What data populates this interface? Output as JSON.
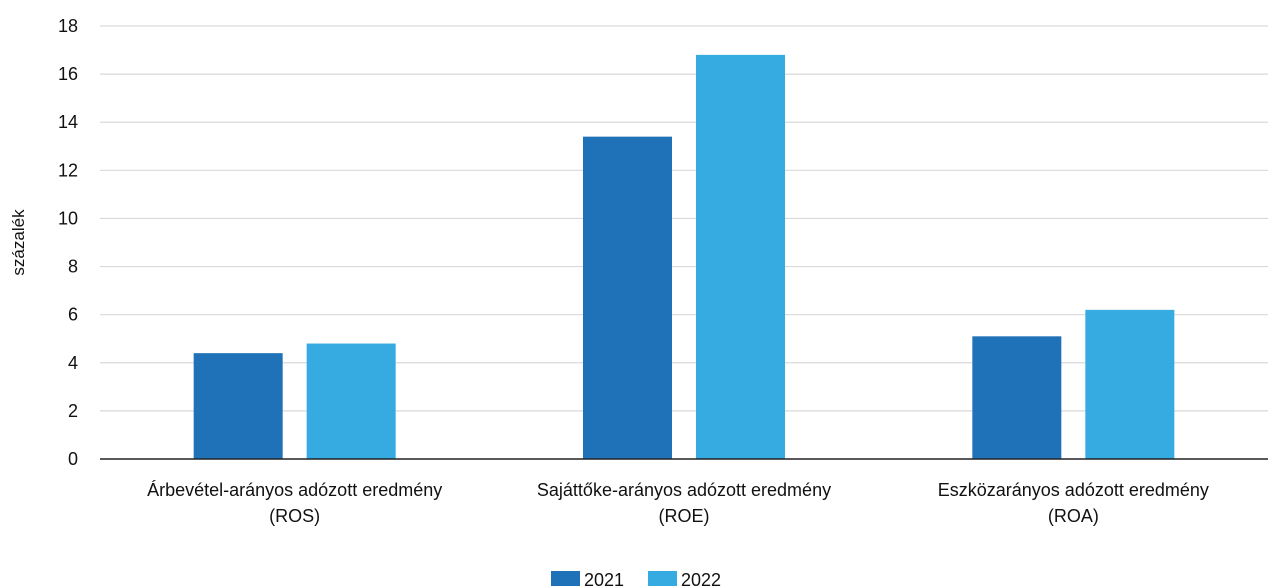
{
  "chart_data": {
    "type": "bar",
    "title": "",
    "xlabel": "",
    "ylabel": "százalék",
    "ylim": [
      0,
      18
    ],
    "yticks": [
      0,
      2,
      4,
      6,
      8,
      10,
      12,
      14,
      16,
      18
    ],
    "grid": true,
    "legend_position": "bottom-center",
    "categories": [
      [
        "Árbevétel-arányos adózott eredmény",
        "(ROS)"
      ],
      [
        "Sajáttőke-arányos adózott eredmény",
        "(ROE)"
      ],
      [
        "Eszközarányos adózott eredmény",
        "(ROA)"
      ]
    ],
    "series": [
      {
        "name": "2021",
        "color": "#1f72b8",
        "values": [
          4.4,
          13.4,
          5.1
        ]
      },
      {
        "name": "2022",
        "color": "#36abe2",
        "values": [
          4.8,
          16.8,
          6.2
        ]
      }
    ]
  }
}
